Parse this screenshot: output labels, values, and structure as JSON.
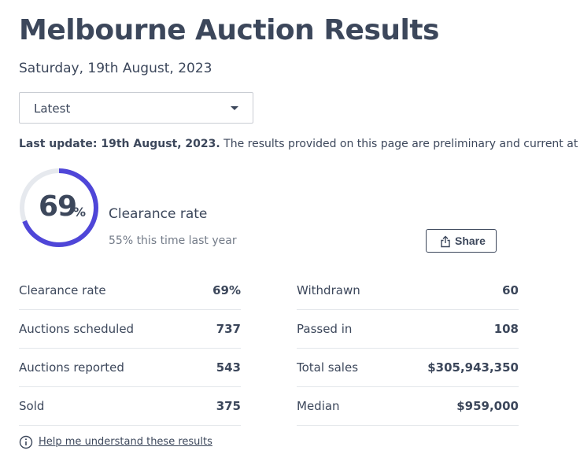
{
  "page": {
    "title": "Melbourne Auction Results",
    "date": "Saturday, 19th August, 2023"
  },
  "filter": {
    "selected": "Latest"
  },
  "update": {
    "label": "Last update: 19th August, 2023.",
    "text": " The results provided on this page are preliminary and current at the"
  },
  "clearance": {
    "value": "69",
    "unit": "%",
    "rate_fraction": 0.69,
    "label": "Clearance rate",
    "last_year": "55% this time last year"
  },
  "share": {
    "label": "Share"
  },
  "stats_left": [
    {
      "label": "Clearance rate",
      "value": "69%"
    },
    {
      "label": "Auctions scheduled",
      "value": "737"
    },
    {
      "label": "Auctions reported",
      "value": "543"
    },
    {
      "label": "Sold",
      "value": "375"
    }
  ],
  "stats_right": [
    {
      "label": "Withdrawn",
      "value": "60"
    },
    {
      "label": "Passed in",
      "value": "108"
    },
    {
      "label": "Total sales",
      "value": "$305,943,350"
    },
    {
      "label": "Median",
      "value": "$959,000"
    }
  ],
  "help": {
    "label": "Help me understand these results"
  },
  "colors": {
    "accent": "#4f46d8",
    "ring_track": "#e6e9ee",
    "text": "#3c475b",
    "muted": "#737b88"
  },
  "icons": {
    "share": "share-icon",
    "help": "info-icon",
    "caret": "chevron-down-icon"
  }
}
